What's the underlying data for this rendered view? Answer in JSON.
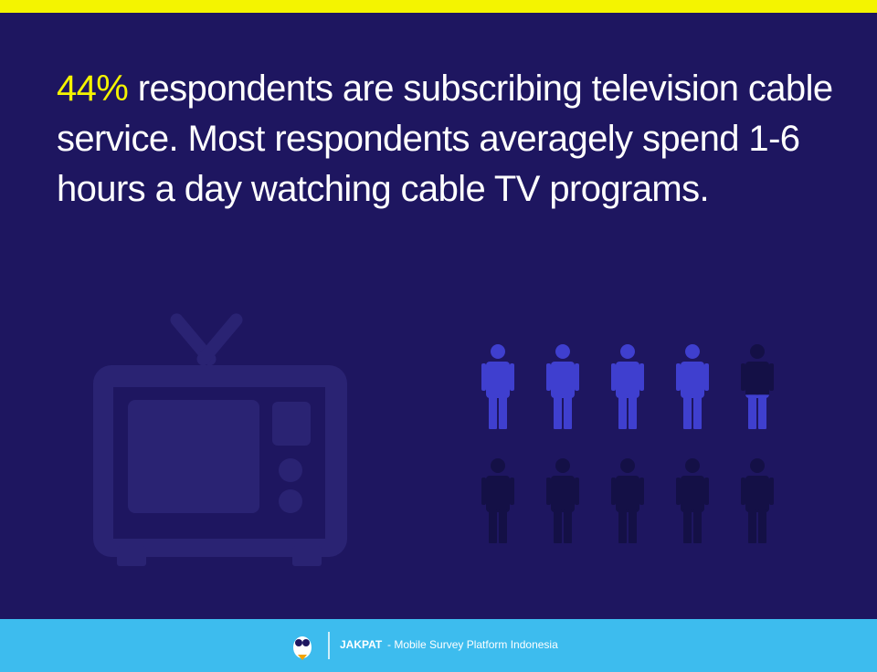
{
  "headline": {
    "highlight": "44%",
    "text": "respondents are subscribing television cable service. Most respondents averagely spend 1-6 hours a day watching cable TV programs."
  },
  "pictograph": {
    "value": 44
  },
  "footer": {
    "brand": "JAKPAT",
    "tagline": "- Mobile Survey Platform Indonesia"
  }
}
